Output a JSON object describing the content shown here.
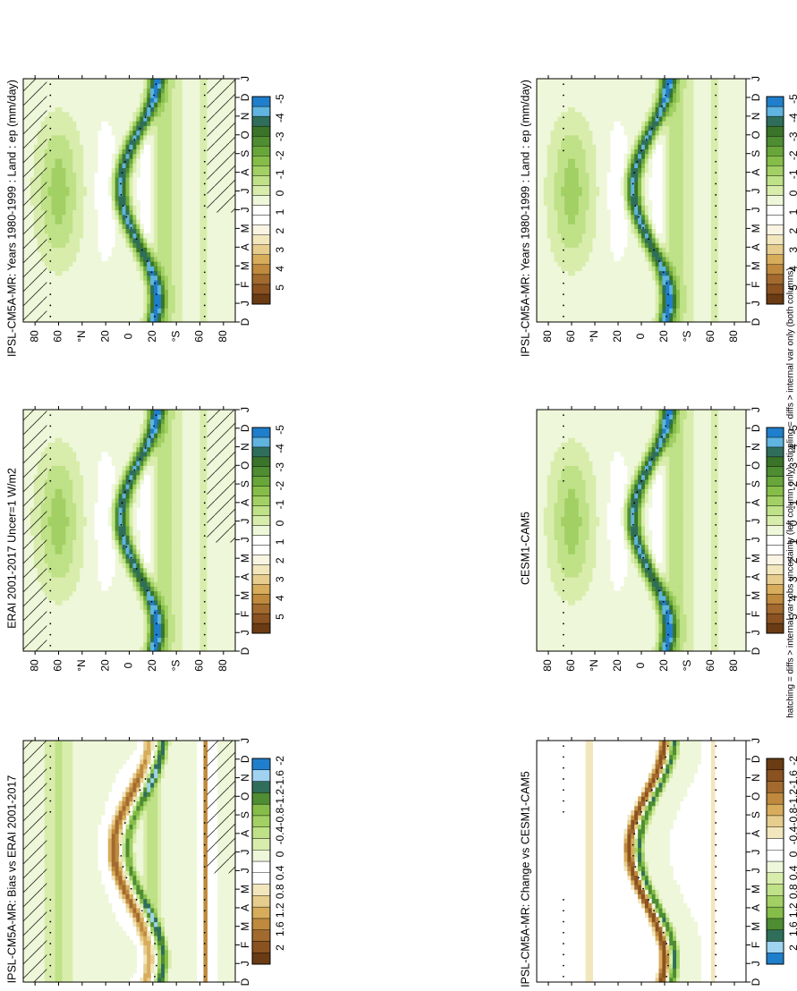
{
  "footnote": "hatching = diffs > internal var+obs uncertainty (left column only); stippling = diffs > internal var only (both columns)",
  "months": [
    "D",
    "J",
    "F",
    "M",
    "A",
    "M",
    "J",
    "J",
    "A",
    "S",
    "O",
    "N",
    "D",
    "J"
  ],
  "lat_ticks": [
    "80",
    "60",
    "°N",
    "20",
    "0",
    "20",
    "°S",
    "60",
    "80"
  ],
  "colorbars": {
    "fields": [
      "5",
      "4",
      "3",
      "2",
      "1",
      "0",
      "-1",
      "-2",
      "-3",
      "-4",
      "-5"
    ],
    "left_diff": [
      "2",
      "1.6",
      "1.2",
      "0.8",
      "0.4",
      "0",
      "-0.4",
      "-0.8",
      "-1.2",
      "-1.6",
      "-2"
    ],
    "right_diff": [
      "2",
      "1.6",
      "1.2",
      "0.8",
      "0.4",
      "0",
      "-0.4",
      "-0.8",
      "-1.2",
      "-1.6",
      "-2"
    ]
  },
  "palettes": {
    "fields": [
      "#6b3b13",
      "#8a5220",
      "#a26a2e",
      "#bf8a3e",
      "#d7ad5c",
      "#e7cd8d",
      "#f2e6bd",
      "#faf4e3",
      "#ffffff",
      "#ffffff",
      "#eef7d9",
      "#d8edac",
      "#bfe187",
      "#a2d064",
      "#86bd49",
      "#69a63a",
      "#4e8d31",
      "#3a7428",
      "#2f6e5a",
      "#5fb4e0",
      "#1f7fcc"
    ],
    "left_diff": [
      "#6b3b13",
      "#8a5220",
      "#a26a2e",
      "#bf8a3e",
      "#d7ad5c",
      "#e7cd8d",
      "#f2e6bd",
      "#ffffff",
      "#ffffff",
      "#eef7d9",
      "#d8edac",
      "#bfe187",
      "#a2d064",
      "#86bd49",
      "#4e8d31",
      "#2f6e5a",
      "#9fd3f0",
      "#1f7fcc"
    ],
    "right_diff": [
      "#1f7fcc",
      "#9fd3f0",
      "#2f6e5a",
      "#4e8d31",
      "#86bd49",
      "#a2d064",
      "#bfe187",
      "#d8edac",
      "#eef7d9",
      "#ffffff",
      "#ffffff",
      "#f2e6bd",
      "#e7cd8d",
      "#d7ad5c",
      "#bf8a3e",
      "#a26a2e",
      "#8a5220",
      "#6b3b13"
    ]
  },
  "panels": [
    {
      "id": "p1",
      "title": "IPSL-CM5A-MR: Years 1980-1999 : Land : ep (mm/day)",
      "style": "model",
      "hatch": true,
      "stipple": true,
      "colorbar": "fields"
    },
    {
      "id": "p2",
      "title": "IPSL-CM5A-MR: Years 1980-1999 : Land : ep (mm/day)",
      "style": "model",
      "hatch": false,
      "stipple": true,
      "colorbar": "fields"
    },
    {
      "id": "p3",
      "title": "ERAI 2001-2017 Uncer=1 W/m2",
      "style": "obs",
      "hatch": true,
      "stipple": true,
      "colorbar": "fields"
    },
    {
      "id": "p4",
      "title": "CESM1-CAM5",
      "style": "model",
      "hatch": false,
      "stipple": true,
      "colorbar": "fields"
    },
    {
      "id": "p5",
      "title": "IPSL-CM5A-MR: Bias vs ERAI 2001-2017",
      "style": "bias",
      "hatch": true,
      "stipple": true,
      "colorbar": "left_diff"
    },
    {
      "id": "p6",
      "title": "IPSL-CM5A-MR: Change vs CESM1-CAM5",
      "style": "change",
      "hatch": false,
      "stipple": true,
      "colorbar": "right_diff"
    }
  ],
  "chart_data": [
    {
      "type": "heatmap",
      "title": "IPSL-CM5A-MR: Years 1980-1999 : Land : ep (mm/day)",
      "x": "month (D to J)",
      "y": "latitude",
      "ylim": [
        -90,
        90
      ],
      "colorbar": [
        5,
        4,
        3,
        2,
        1,
        0,
        -1,
        -2,
        -3,
        -4,
        -5
      ],
      "units": "mm/day"
    },
    {
      "type": "heatmap",
      "title": "IPSL-CM5A-MR: Years 1980-1999 : Land : ep (mm/day)",
      "x": "month (D to J)",
      "y": "latitude",
      "ylim": [
        -90,
        90
      ],
      "colorbar": [
        5,
        4,
        3,
        2,
        1,
        0,
        -1,
        -2,
        -3,
        -4,
        -5
      ],
      "units": "mm/day"
    },
    {
      "type": "heatmap",
      "title": "ERAI 2001-2017 Uncer=1 W/m2",
      "x": "month (D to J)",
      "y": "latitude",
      "ylim": [
        -90,
        90
      ],
      "colorbar": [
        5,
        4,
        3,
        2,
        1,
        0,
        -1,
        -2,
        -3,
        -4,
        -5
      ]
    },
    {
      "type": "heatmap",
      "title": "CESM1-CAM5",
      "x": "month (D to J)",
      "y": "latitude",
      "ylim": [
        -90,
        90
      ],
      "colorbar": [
        5,
        4,
        3,
        2,
        1,
        0,
        -1,
        -2,
        -3,
        -4,
        -5
      ]
    },
    {
      "type": "heatmap",
      "title": "IPSL-CM5A-MR: Bias vs ERAI 2001-2017",
      "x": "month (D to J)",
      "y": "latitude",
      "ylim": [
        -90,
        90
      ],
      "colorbar": [
        2,
        1.6,
        1.2,
        0.8,
        0.4,
        0,
        -0.4,
        -0.8,
        -1.2,
        -1.6,
        -2
      ]
    },
    {
      "type": "heatmap",
      "title": "IPSL-CM5A-MR: Change vs CESM1-CAM5",
      "x": "month (D to J)",
      "y": "latitude",
      "ylim": [
        -90,
        90
      ],
      "colorbar": [
        2,
        1.6,
        1.2,
        0.8,
        0.4,
        0,
        -0.4,
        -0.8,
        -1.2,
        -1.6,
        -2
      ]
    }
  ]
}
